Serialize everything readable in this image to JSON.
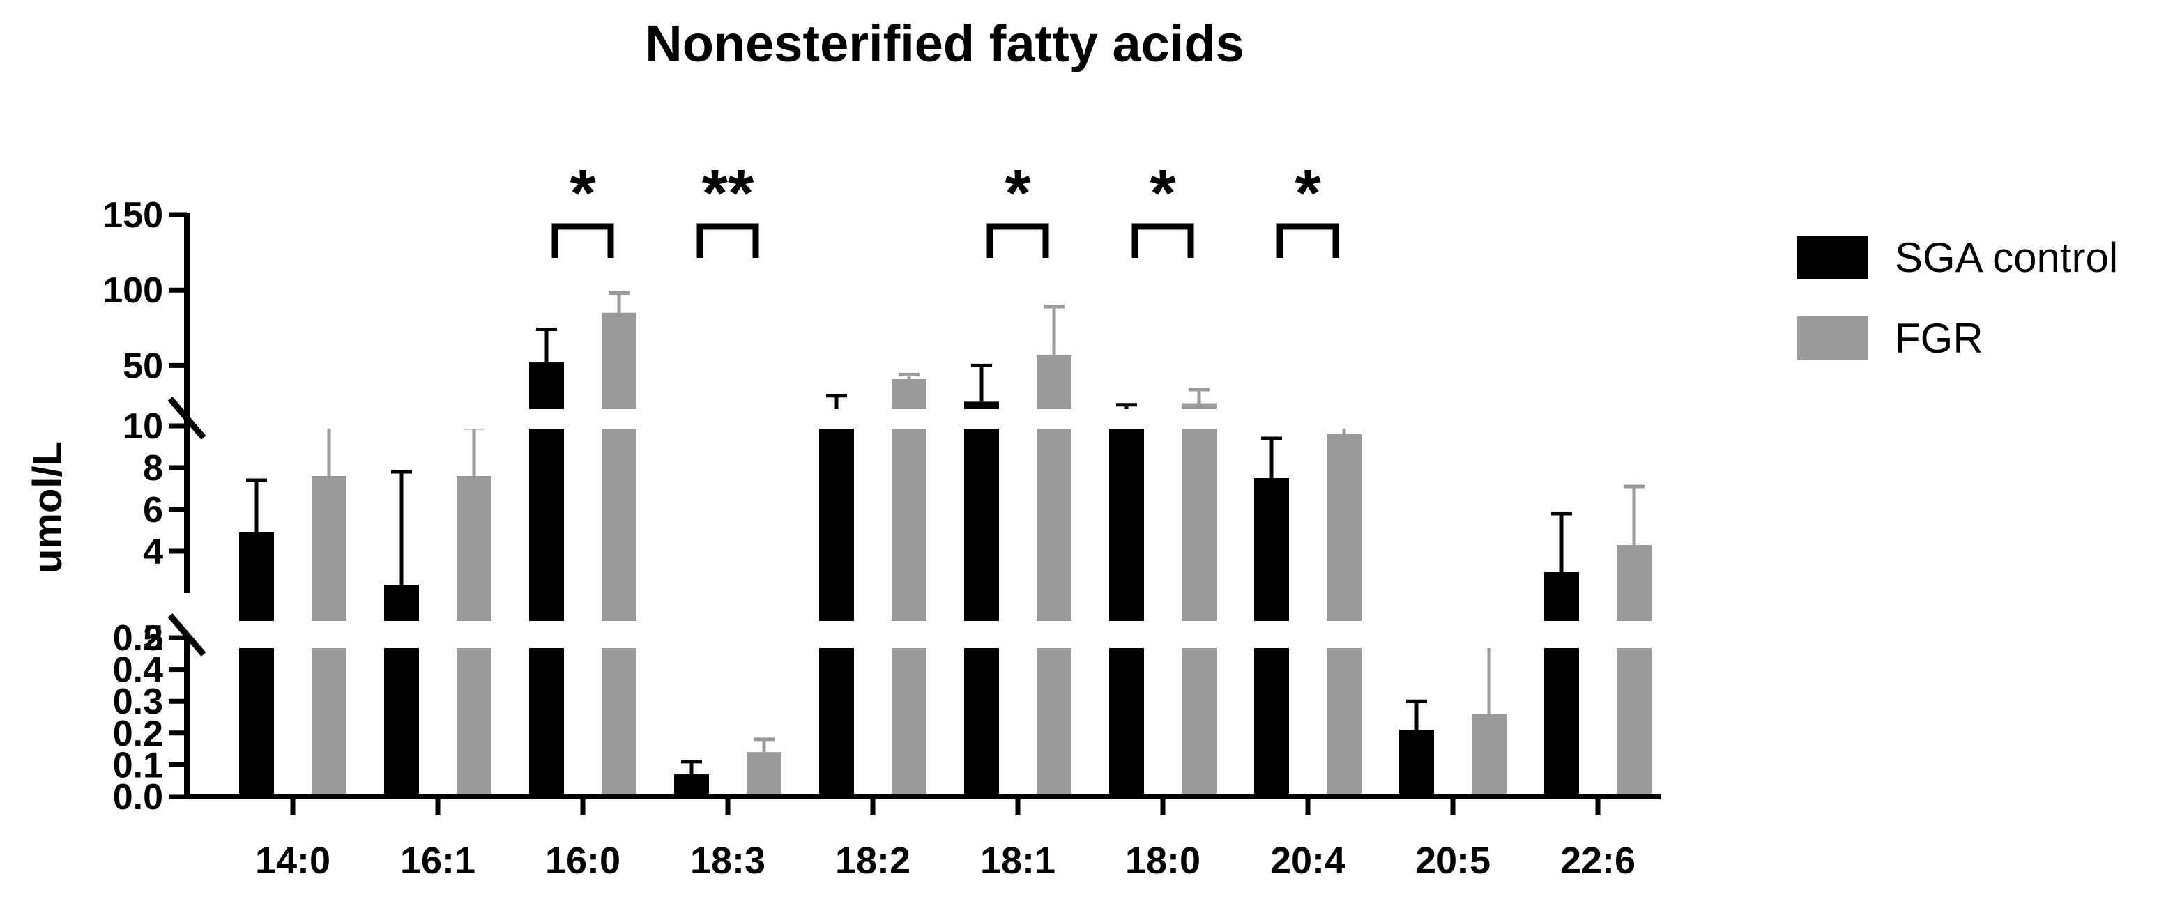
{
  "chart_data": {
    "type": "bar",
    "title": "Nonesterified fatty acids",
    "xlabel": "",
    "ylabel": "umol/L",
    "categories": [
      "14:0",
      "16:1",
      "16:0",
      "18:3",
      "18:2",
      "18:1",
      "18:0",
      "20:4",
      "20:5",
      "22:6"
    ],
    "series": [
      {
        "name": "SGA control",
        "color": "#000000",
        "values": [
          4.9,
          2.4,
          52,
          0.07,
          16,
          26,
          20,
          7.5,
          0.21,
          3.0
        ],
        "errors": [
          2.5,
          5.4,
          22,
          0.04,
          14,
          24,
          4,
          1.9,
          0.09,
          2.8
        ]
      },
      {
        "name": "FGR",
        "color": "#9a9a9a",
        "values": [
          7.6,
          7.6,
          85,
          0.14,
          41,
          57,
          25,
          9.6,
          0.26,
          4.3
        ],
        "errors": [
          2.4,
          2.3,
          13,
          0.04,
          3,
          32,
          9,
          2.0,
          0.25,
          2.8
        ]
      }
    ],
    "y_axis": {
      "segments": [
        {
          "min": 0.0,
          "max": 0.5,
          "ticks": [
            "0.0",
            "0.1",
            "0.2",
            "0.3",
            "0.4",
            "0.5"
          ]
        },
        {
          "min": 2,
          "max": 10,
          "ticks": [
            "2",
            "4",
            "6",
            "8",
            "10"
          ]
        },
        {
          "min": 10,
          "max": 150,
          "ticks": [
            "50",
            "100",
            "150"
          ]
        }
      ],
      "broken": true
    },
    "significance": [
      {
        "category": "16:0",
        "label": "*"
      },
      {
        "category": "18:3",
        "label": "**"
      },
      {
        "category": "18:1",
        "label": "*"
      },
      {
        "category": "18:0",
        "label": "*"
      },
      {
        "category": "20:4",
        "label": "*"
      }
    ],
    "legend_position": "top-right",
    "grid": false
  }
}
